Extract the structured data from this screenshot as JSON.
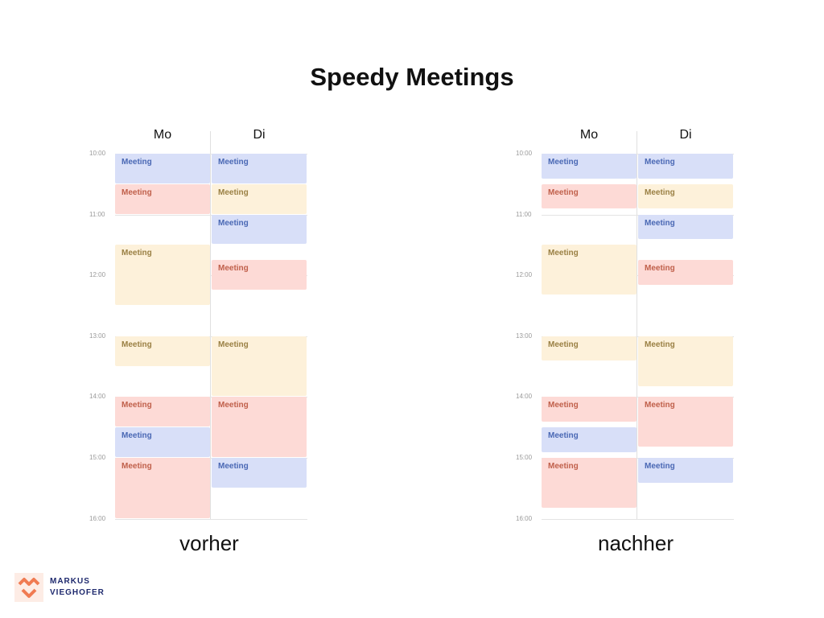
{
  "title": "Speedy Meetings",
  "brand": {
    "line1": "MARKUS",
    "line2": "VIEGHOFER"
  },
  "time_labels": [
    "10:00",
    "11:00",
    "12:00",
    "13:00",
    "14:00",
    "15:00",
    "16:00"
  ],
  "colors": {
    "blue": "#d8dff8",
    "red": "#fddad6",
    "yellow": "#fdf1da",
    "logo": "#f07b52"
  },
  "calendars": [
    {
      "caption": "vorher",
      "days": [
        "Mo",
        "Di"
      ],
      "meetings": [
        {
          "day": 0,
          "start": "10:00",
          "end": "10:30",
          "color": "blue",
          "label": "Meeting"
        },
        {
          "day": 0,
          "start": "10:30",
          "end": "11:00",
          "color": "red",
          "label": "Meeting"
        },
        {
          "day": 0,
          "start": "11:30",
          "end": "12:30",
          "color": "yellow",
          "label": "Meeting"
        },
        {
          "day": 0,
          "start": "13:00",
          "end": "13:30",
          "color": "yellow",
          "label": "Meeting"
        },
        {
          "day": 0,
          "start": "14:00",
          "end": "14:30",
          "color": "red",
          "label": "Meeting"
        },
        {
          "day": 0,
          "start": "14:30",
          "end": "15:00",
          "color": "blue",
          "label": "Meeting"
        },
        {
          "day": 0,
          "start": "15:00",
          "end": "16:00",
          "color": "red",
          "label": "Meeting"
        },
        {
          "day": 1,
          "start": "10:00",
          "end": "10:30",
          "color": "blue",
          "label": "Meeting"
        },
        {
          "day": 1,
          "start": "10:30",
          "end": "11:00",
          "color": "yellow",
          "label": "Meeting"
        },
        {
          "day": 1,
          "start": "11:00",
          "end": "11:30",
          "color": "blue",
          "label": "Meeting"
        },
        {
          "day": 1,
          "start": "11:45",
          "end": "12:15",
          "color": "red",
          "label": "Meeting"
        },
        {
          "day": 1,
          "start": "13:00",
          "end": "14:00",
          "color": "yellow",
          "label": "Meeting"
        },
        {
          "day": 1,
          "start": "14:00",
          "end": "15:00",
          "color": "red",
          "label": "Meeting"
        },
        {
          "day": 1,
          "start": "15:00",
          "end": "15:30",
          "color": "blue",
          "label": "Meeting"
        }
      ]
    },
    {
      "caption": "nachher",
      "days": [
        "Mo",
        "Di"
      ],
      "meetings": [
        {
          "day": 0,
          "start": "10:00",
          "end": "10:25",
          "color": "blue",
          "label": "Meeting"
        },
        {
          "day": 0,
          "start": "10:30",
          "end": "10:55",
          "color": "red",
          "label": "Meeting"
        },
        {
          "day": 0,
          "start": "11:30",
          "end": "12:20",
          "color": "yellow",
          "label": "Meeting"
        },
        {
          "day": 0,
          "start": "13:00",
          "end": "13:25",
          "color": "yellow",
          "label": "Meeting"
        },
        {
          "day": 0,
          "start": "14:00",
          "end": "14:25",
          "color": "red",
          "label": "Meeting"
        },
        {
          "day": 0,
          "start": "14:30",
          "end": "14:55",
          "color": "blue",
          "label": "Meeting"
        },
        {
          "day": 0,
          "start": "15:00",
          "end": "15:50",
          "color": "red",
          "label": "Meeting"
        },
        {
          "day": 1,
          "start": "10:00",
          "end": "10:25",
          "color": "blue",
          "label": "Meeting"
        },
        {
          "day": 1,
          "start": "10:30",
          "end": "10:55",
          "color": "yellow",
          "label": "Meeting"
        },
        {
          "day": 1,
          "start": "11:00",
          "end": "11:25",
          "color": "blue",
          "label": "Meeting"
        },
        {
          "day": 1,
          "start": "11:45",
          "end": "12:10",
          "color": "red",
          "label": "Meeting"
        },
        {
          "day": 1,
          "start": "13:00",
          "end": "13:50",
          "color": "yellow",
          "label": "Meeting"
        },
        {
          "day": 1,
          "start": "14:00",
          "end": "14:50",
          "color": "red",
          "label": "Meeting"
        },
        {
          "day": 1,
          "start": "15:00",
          "end": "15:25",
          "color": "blue",
          "label": "Meeting"
        }
      ]
    }
  ]
}
